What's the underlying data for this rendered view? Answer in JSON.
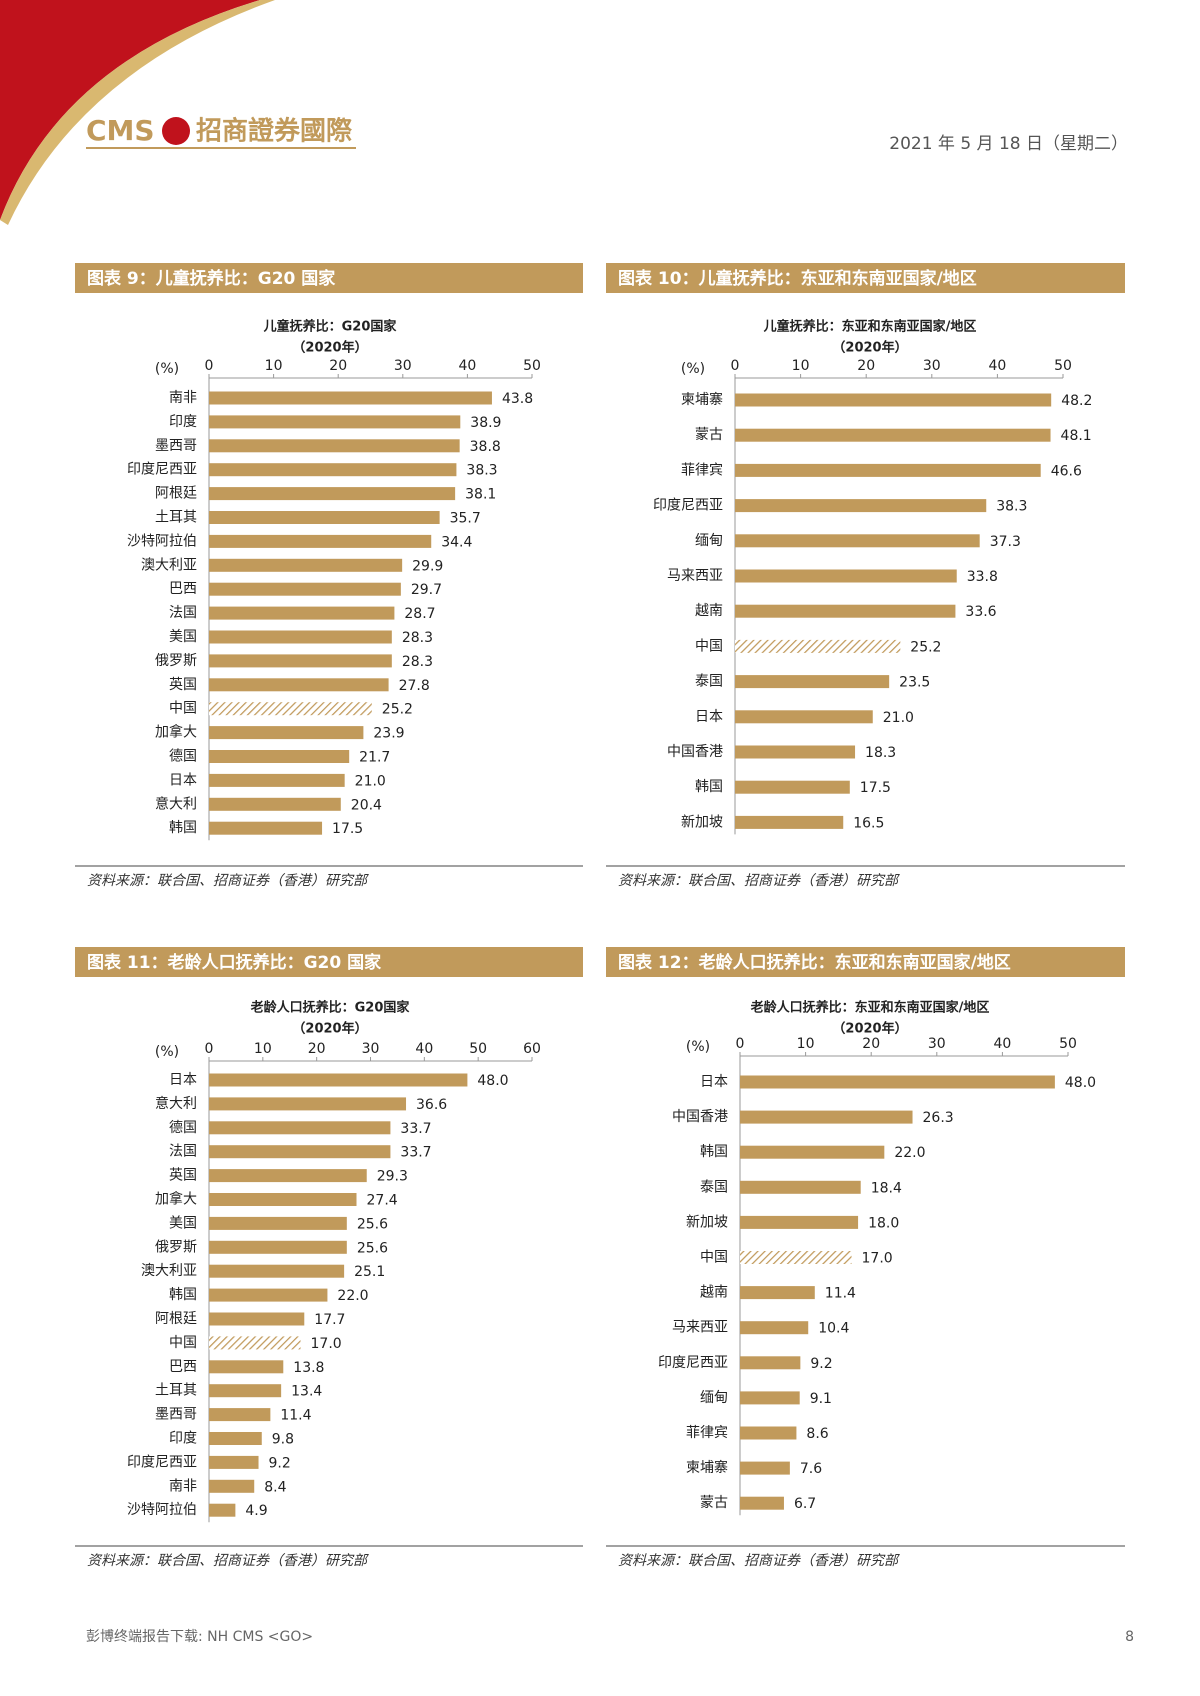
{
  "header": {
    "logo_text": "CMS",
    "logo_name": "招商證券國際",
    "date": "2021 年 5 月 18 日（星期二）"
  },
  "chart_data": [
    {
      "type": "bar",
      "figure_title": "图表 9：儿童抚养比：G20 国家",
      "title": "儿童抚养比：G20国家",
      "subtitle": "（2020年）",
      "unit_label": "(%)",
      "categories": [
        "南非",
        "印度",
        "墨西哥",
        "印度尼西亚",
        "阿根廷",
        "土耳其",
        "沙特阿拉伯",
        "澳大利亚",
        "巴西",
        "法国",
        "美国",
        "俄罗斯",
        "英国",
        "中国",
        "加拿大",
        "德国",
        "日本",
        "意大利",
        "韩国"
      ],
      "values": [
        43.8,
        38.9,
        38.8,
        38.3,
        38.1,
        35.7,
        34.4,
        29.9,
        29.7,
        28.7,
        28.3,
        28.3,
        27.8,
        25.2,
        23.9,
        21.7,
        21.0,
        20.4,
        17.5
      ],
      "value_labels": [
        "43.8",
        "38.9",
        "38.8",
        "38.3",
        "38.1",
        "35.7",
        "34.4",
        "29.9",
        "29.7",
        "28.7",
        "28.3",
        "28.3",
        "27.8",
        "25.2",
        "23.9",
        "21.7",
        "21.0",
        "20.4",
        "17.5"
      ],
      "xlim": [
        0,
        50
      ],
      "xticks": [
        0,
        10,
        20,
        30,
        40,
        50
      ],
      "color": "#c19a5b",
      "hatched": "中国",
      "source": "资料来源：联合国、招商证券（香港）研究部"
    },
    {
      "type": "bar",
      "figure_title": "图表 10：儿童抚养比：东亚和东南亚国家/地区",
      "title": "儿童抚养比：东亚和东南亚国家/地区",
      "subtitle": "（2020年）",
      "unit_label": "(%)",
      "categories": [
        "柬埔寨",
        "蒙古",
        "菲律宾",
        "印度尼西亚",
        "缅甸",
        "马来西亚",
        "越南",
        "中国",
        "泰国",
        "日本",
        "中国香港",
        "韩国",
        "新加坡"
      ],
      "values": [
        48.2,
        48.1,
        46.6,
        38.3,
        37.3,
        33.8,
        33.6,
        25.2,
        23.5,
        21.0,
        18.3,
        17.5,
        16.5
      ],
      "value_labels": [
        "48.2",
        "48.1",
        "46.6",
        "38.3",
        "37.3",
        "33.8",
        "33.6",
        "25.2",
        "23.5",
        "21.0",
        "18.3",
        "17.5",
        "16.5"
      ],
      "xlim": [
        0,
        50
      ],
      "xticks": [
        0,
        10,
        20,
        30,
        40,
        50
      ],
      "color": "#c19a5b",
      "hatched": "中国",
      "source": "资料来源：联合国、招商证券（香港）研究部"
    },
    {
      "type": "bar",
      "figure_title": "图表 11：老龄人口抚养比：G20 国家",
      "title": "老龄人口抚养比：G20国家",
      "subtitle": "（2020年）",
      "unit_label": "(%)",
      "categories": [
        "日本",
        "意大利",
        "德国",
        "法国",
        "英国",
        "加拿大",
        "美国",
        "俄罗斯",
        "澳大利亚",
        "韩国",
        "阿根廷",
        "中国",
        "巴西",
        "土耳其",
        "墨西哥",
        "印度",
        "印度尼西亚",
        "南非",
        "沙特阿拉伯"
      ],
      "values": [
        48.0,
        36.6,
        33.7,
        33.7,
        29.3,
        27.4,
        25.6,
        25.6,
        25.1,
        22.0,
        17.7,
        17.0,
        13.8,
        13.4,
        11.4,
        9.8,
        9.2,
        8.4,
        4.9
      ],
      "value_labels": [
        "48.0",
        "36.6",
        "33.7",
        "33.7",
        "29.3",
        "27.4",
        "25.6",
        "25.6",
        "25.1",
        "22.0",
        "17.7",
        "17.0",
        "13.8",
        "13.4",
        "11.4",
        "9.8",
        "9.2",
        "8.4",
        "4.9"
      ],
      "xlim": [
        0,
        60
      ],
      "xticks": [
        0,
        10,
        20,
        30,
        40,
        50,
        60
      ],
      "color": "#c19a5b",
      "hatched": "中国",
      "source": "资料来源：联合国、招商证券（香港）研究部"
    },
    {
      "type": "bar",
      "figure_title": "图表 12：老龄人口抚养比：东亚和东南亚国家/地区",
      "title": "老龄人口抚养比：东亚和东南亚国家/地区",
      "subtitle": "（2020年）",
      "unit_label": "(%)",
      "categories": [
        "日本",
        "中国香港",
        "韩国",
        "泰国",
        "新加坡",
        "中国",
        "越南",
        "马来西亚",
        "印度尼西亚",
        "缅甸",
        "菲律宾",
        "柬埔寨",
        "蒙古"
      ],
      "values": [
        48.0,
        26.3,
        22.0,
        18.4,
        18.0,
        17.0,
        11.4,
        10.4,
        9.2,
        9.1,
        8.6,
        7.6,
        6.7
      ],
      "value_labels": [
        "48.0",
        "26.3",
        "22.0",
        "18.4",
        "18.0",
        "17.0",
        "11.4",
        "10.4",
        "9.2",
        "9.1",
        "8.6",
        "7.6",
        "6.7"
      ],
      "xlim": [
        0,
        50
      ],
      "xticks": [
        0,
        10,
        20,
        30,
        40,
        50
      ],
      "color": "#c19a5b",
      "hatched": "中国",
      "source": "资料来源：联合国、招商证券（香港）研究部"
    }
  ],
  "footer": {
    "note": "彭博终端报告下载: NH CMS <GO>",
    "page": "8"
  }
}
